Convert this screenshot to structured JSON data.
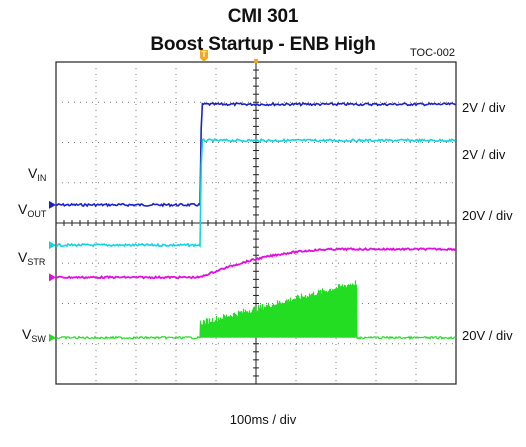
{
  "chart_data": {
    "type": "line",
    "title": "CMI 301",
    "subtitle": "Boost Startup - ENB High",
    "figure_tag": "TOC-002",
    "trigger_marker": "T",
    "time_scale": "100ms / div",
    "x_divisions": 10,
    "y_divisions": 8,
    "grid": true,
    "channels": [
      {
        "name": "V",
        "sub": "IN",
        "scale": "2V / div",
        "color": "#1a22c8",
        "shape": "step",
        "low_div": 4.45,
        "high_div": 6.95,
        "step_div": 3.6
      },
      {
        "name": "V",
        "sub": "OUT",
        "scale": "2V / div",
        "color": "#12d4e0",
        "shape": "step",
        "low_div": 3.45,
        "high_div": 6.05,
        "step_div": 3.6
      },
      {
        "name": "V",
        "sub": "STR",
        "scale": "20V / div",
        "color": "#e010e0",
        "shape": "rise",
        "low_div": 2.65,
        "high_div": 3.35,
        "rise_start_div": 3.6,
        "settle_div": 7.2
      },
      {
        "name": "V",
        "sub": "SW",
        "scale": "20V / div",
        "color": "#22dd22",
        "shape": "switching",
        "base_div": 1.15,
        "burst_start_div": 3.6,
        "burst_end_div": 7.5,
        "burst_peak_start_div": 1.45,
        "burst_peak_end_div": 2.45
      }
    ]
  }
}
